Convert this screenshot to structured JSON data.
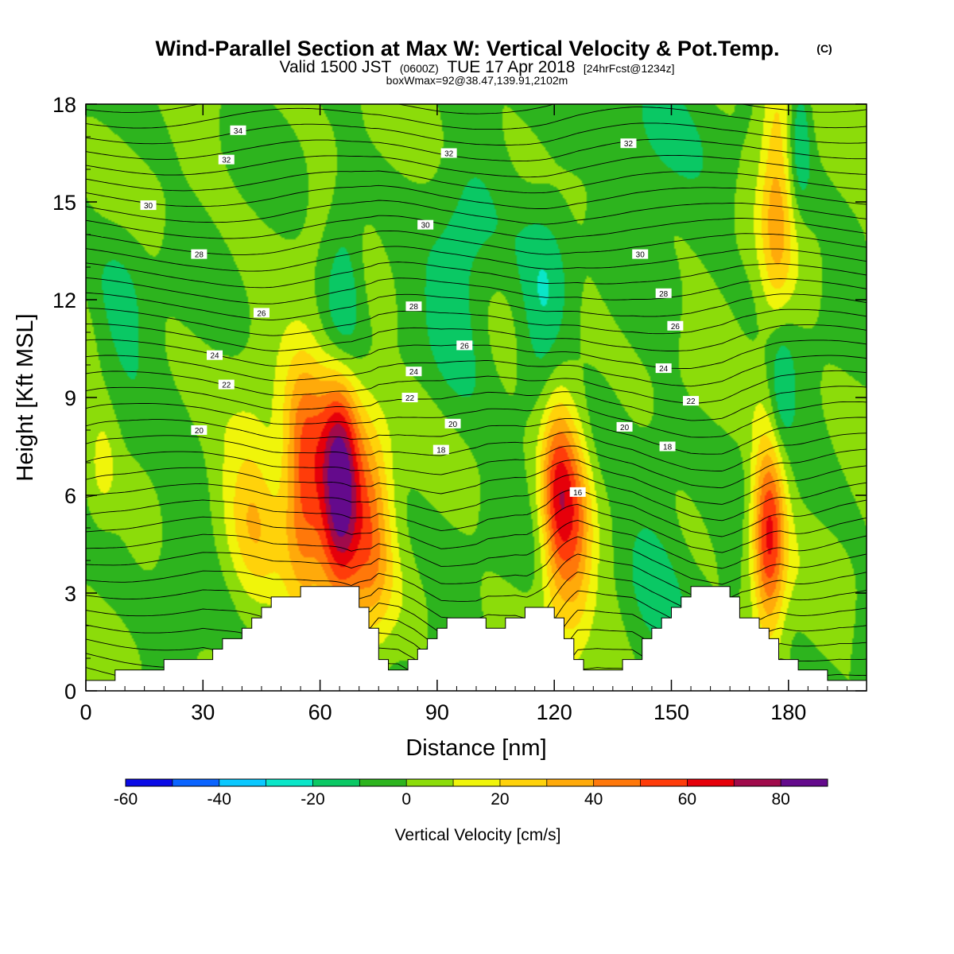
{
  "title": {
    "main": "Wind-Parallel Section at Max W: Vertical Velocity & Pot.Temp.",
    "copyright": "(C)",
    "valid_prefix": "Valid 1500 JST",
    "valid_z": "(0600Z)",
    "valid_date": "TUE 17 Apr 2018",
    "forecast": "[24hrFcst@1234z]",
    "boxwmax": "boxWmax=92@38.47,139.91,2102m"
  },
  "chart_data": {
    "type": "heatmap",
    "description_type": "filled contour cross-section with potential temperature contour lines",
    "xlabel": "Distance [nm]",
    "ylabel": "Height [Kft MSL]",
    "xlim": [
      0,
      200
    ],
    "ylim": [
      0,
      18
    ],
    "x_ticks": [
      0,
      30,
      60,
      90,
      120,
      150,
      180
    ],
    "y_ticks": [
      0,
      3,
      6,
      9,
      12,
      15,
      18
    ],
    "colorbar": {
      "title": "Vertical Velocity [cm/s]",
      "levels": [
        -60,
        -50,
        -40,
        -30,
        -20,
        -10,
        0,
        10,
        20,
        30,
        40,
        50,
        60,
        70,
        80,
        90
      ],
      "colors": [
        "#0a0ae6",
        "#0a64ff",
        "#0ac8ff",
        "#0ae6c8",
        "#0ac864",
        "#2db41e",
        "#8cdc0a",
        "#f0f50a",
        "#ffd20a",
        "#ffaa0a",
        "#ff780a",
        "#ff3c0a",
        "#e6000a",
        "#a00a4b",
        "#640a8c"
      ],
      "tick_labels": [
        "-60",
        "-40",
        "-20",
        "0",
        "20",
        "40",
        "60",
        "80"
      ],
      "tick_values": [
        -60,
        -40,
        -20,
        0,
        20,
        40,
        60,
        80
      ]
    },
    "updrafts": [
      {
        "x": 43,
        "z": 5.2,
        "w": 28,
        "sx": 5,
        "sz": 2.2
      },
      {
        "x": 56,
        "z": 6.4,
        "w": 58,
        "sx": 4,
        "sz": 2.5
      },
      {
        "x": 65,
        "z": 6.3,
        "w": 88,
        "sx": 3.6,
        "sz": 2.4
      },
      {
        "x": 73,
        "z": 5.2,
        "w": 40,
        "sx": 4,
        "sz": 2.6
      },
      {
        "x": 121,
        "z": 6.0,
        "w": 58,
        "sx": 3.2,
        "sz": 2.4
      },
      {
        "x": 126,
        "z": 5.0,
        "w": 30,
        "sx": 3,
        "sz": 2.5
      },
      {
        "x": 175,
        "z": 4.8,
        "w": 62,
        "sx": 3,
        "sz": 2.2
      },
      {
        "x": 177,
        "z": 15.5,
        "w": 30,
        "sx": 3,
        "sz": 3.5
      },
      {
        "x": 4,
        "z": 7.0,
        "w": 16,
        "sx": 3,
        "sz": 1.3
      }
    ],
    "downdrafts": [
      {
        "x": 66,
        "z": 12.3,
        "w": -24,
        "sx": 3.5,
        "sz": 1.8
      },
      {
        "x": 96,
        "z": 12.0,
        "w": -16,
        "sx": 6,
        "sz": 2.5
      },
      {
        "x": 118,
        "z": 12.2,
        "w": -22,
        "sx": 5,
        "sz": 2.2
      },
      {
        "x": 178,
        "z": 9.3,
        "w": -24,
        "sx": 2.5,
        "sz": 1.5
      },
      {
        "x": 183,
        "z": 17.0,
        "w": -20,
        "sx": 2,
        "sz": 1.5
      },
      {
        "x": 9,
        "z": 12.0,
        "w": -12,
        "sx": 5,
        "sz": 2
      },
      {
        "x": 24,
        "z": 4.5,
        "w": -12,
        "sx": 5,
        "sz": 2
      },
      {
        "x": 145,
        "z": 4.5,
        "w": -12,
        "sx": 6,
        "sz": 2.5
      },
      {
        "x": 145,
        "z": 17.5,
        "w": -12,
        "sx": 8,
        "sz": 2
      }
    ],
    "terrain_kft": [
      [
        0,
        0.3
      ],
      [
        10,
        0.6
      ],
      [
        30,
        1.0
      ],
      [
        33,
        1.3
      ],
      [
        39,
        1.9
      ],
      [
        45,
        2.6
      ],
      [
        48,
        2.9
      ],
      [
        59,
        3.2
      ],
      [
        68,
        3.2
      ],
      [
        70,
        2.6
      ],
      [
        73,
        1.9
      ],
      [
        75,
        0.9
      ],
      [
        80,
        0.6
      ],
      [
        84,
        1.0
      ],
      [
        88,
        1.7
      ],
      [
        91,
        2.2
      ],
      [
        100,
        2.2
      ],
      [
        103,
        1.9
      ],
      [
        110,
        2.2
      ],
      [
        113,
        2.6
      ],
      [
        118,
        2.6
      ],
      [
        121,
        1.9
      ],
      [
        126,
        0.6
      ],
      [
        131,
        0.6
      ],
      [
        140,
        1.0
      ],
      [
        145,
        1.9
      ],
      [
        150,
        2.6
      ],
      [
        155,
        3.2
      ],
      [
        163,
        3.2
      ],
      [
        168,
        2.2
      ],
      [
        173,
        1.9
      ],
      [
        178,
        1.0
      ],
      [
        186,
        0.6
      ],
      [
        193,
        0.3
      ],
      [
        200,
        0.3
      ]
    ],
    "theta_levels": [
      18,
      20,
      22,
      24,
      26,
      28,
      30,
      32,
      34
    ],
    "theta_labels": [
      {
        "text": "34",
        "x": 39,
        "z": 17.2
      },
      {
        "text": "32",
        "x": 36,
        "z": 16.3
      },
      {
        "text": "30",
        "x": 16,
        "z": 14.9
      },
      {
        "text": "28",
        "x": 29,
        "z": 13.4
      },
      {
        "text": "26",
        "x": 45,
        "z": 11.6
      },
      {
        "text": "24",
        "x": 33,
        "z": 10.3
      },
      {
        "text": "22",
        "x": 36,
        "z": 9.4
      },
      {
        "text": "20",
        "x": 29,
        "z": 8.0
      },
      {
        "text": "32",
        "x": 93,
        "z": 16.5
      },
      {
        "text": "30",
        "x": 87,
        "z": 14.3
      },
      {
        "text": "28",
        "x": 84,
        "z": 11.8
      },
      {
        "text": "26",
        "x": 97,
        "z": 10.6
      },
      {
        "text": "24",
        "x": 84,
        "z": 9.8
      },
      {
        "text": "22",
        "x": 83,
        "z": 9.0
      },
      {
        "text": "20",
        "x": 94,
        "z": 8.2
      },
      {
        "text": "18",
        "x": 91,
        "z": 7.4
      },
      {
        "text": "16",
        "x": 126,
        "z": 6.1
      },
      {
        "text": "32",
        "x": 139,
        "z": 16.8
      },
      {
        "text": "30",
        "x": 142,
        "z": 13.4
      },
      {
        "text": "28",
        "x": 148,
        "z": 12.2
      },
      {
        "text": "26",
        "x": 151,
        "z": 11.2
      },
      {
        "text": "24",
        "x": 148,
        "z": 9.9
      },
      {
        "text": "22",
        "x": 155,
        "z": 8.9
      },
      {
        "text": "20",
        "x": 138,
        "z": 8.1
      },
      {
        "text": "18",
        "x": 149,
        "z": 7.5
      }
    ]
  }
}
